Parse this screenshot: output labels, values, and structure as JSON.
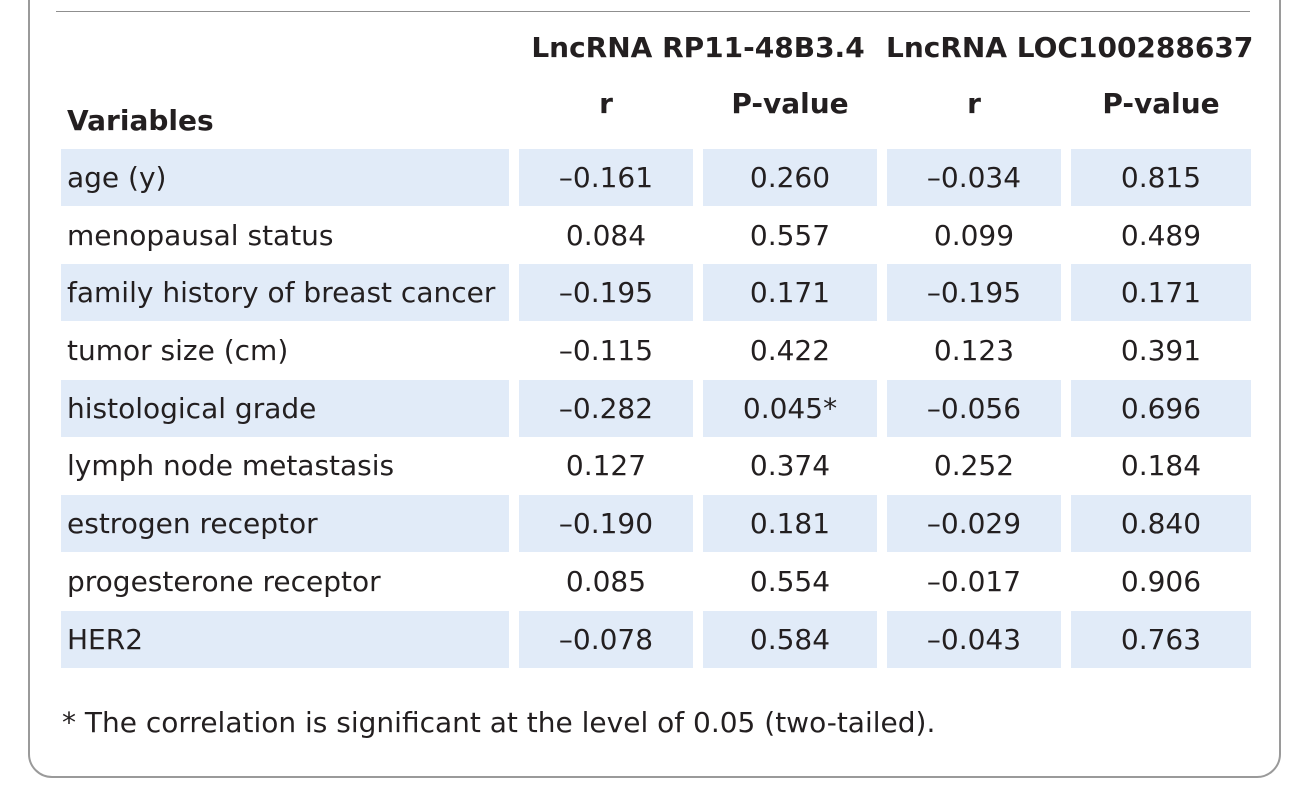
{
  "table": {
    "group_headers": [
      "LncRNA RP11-48B3.4",
      "LncRNA LOC100288637"
    ],
    "variables_header": "Variables",
    "sub_headers": [
      "r",
      "P-value",
      "r",
      "P-value"
    ],
    "rows": [
      {
        "variable": "age (y)",
        "values": [
          "–0.161",
          "0.260",
          "–0.034",
          "0.815"
        ]
      },
      {
        "variable": "menopausal status",
        "values": [
          "0.084",
          "0.557",
          "0.099",
          "0.489"
        ]
      },
      {
        "variable": "family history of breast cancer",
        "values": [
          "–0.195",
          "0.171",
          "–0.195",
          "0.171"
        ]
      },
      {
        "variable": "tumor size (cm)",
        "values": [
          "–0.115",
          "0.422",
          "0.123",
          "0.391"
        ]
      },
      {
        "variable": "histological grade",
        "values": [
          "–0.282",
          "0.045*",
          "–0.056",
          "0.696"
        ]
      },
      {
        "variable": "lymph node metastasis",
        "values": [
          "0.127",
          "0.374",
          "0.252",
          "0.184"
        ]
      },
      {
        "variable": "estrogen receptor",
        "values": [
          "–0.190",
          "0.181",
          "–0.029",
          "0.840"
        ]
      },
      {
        "variable": "progesterone receptor",
        "values": [
          "0.085",
          "0.554",
          "–0.017",
          "0.906"
        ]
      },
      {
        "variable": "HER2",
        "values": [
          "–0.078",
          "0.584",
          "–0.043",
          "0.763"
        ]
      }
    ],
    "footnote": "* The correlation is significant at the level of 0.05 (two-tailed)."
  },
  "colors": {
    "row_shading": "#e1ebf8",
    "frame_border": "#9a9a9a",
    "text": "#231f20"
  }
}
